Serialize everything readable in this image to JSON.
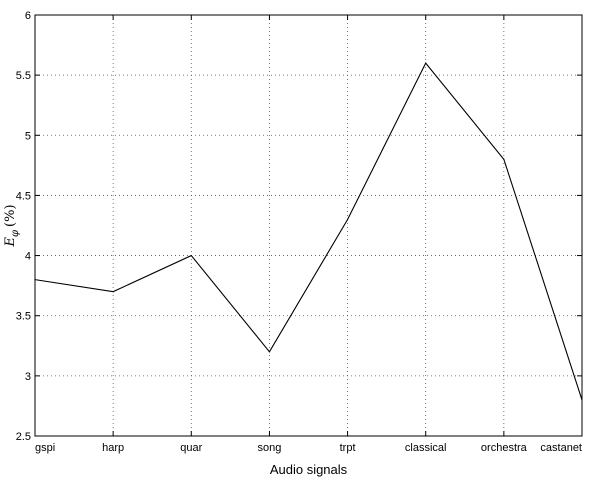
{
  "chart_data": {
    "type": "line",
    "title": "",
    "xlabel": "Audio signals",
    "ylabel": "E_φ (%)",
    "ylabel_main": "E",
    "ylabel_sub": "φ",
    "ylabel_unit": "(%)",
    "categories": [
      "gspi",
      "harp",
      "quar",
      "song",
      "trpt",
      "classical",
      "orchestra",
      "castanet"
    ],
    "series": [
      {
        "values": [
          3.8,
          3.7,
          4.0,
          3.2,
          4.3,
          5.6,
          4.8,
          2.8
        ]
      }
    ],
    "ylim": [
      2.5,
      6
    ],
    "yticks": [
      "2.5",
      "3",
      "3.5",
      "4",
      "4.5",
      "5",
      "5.5",
      "6"
    ],
    "grid": true,
    "line_color": "#000000"
  }
}
